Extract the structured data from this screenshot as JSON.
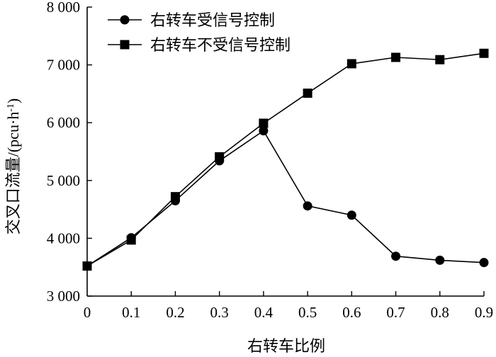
{
  "chart_data": {
    "type": "line",
    "x": [
      0,
      0.1,
      0.2,
      0.3,
      0.4,
      0.5,
      0.6,
      0.7,
      0.8,
      0.9
    ],
    "x_tick_labels": [
      "0",
      "0.1",
      "0.2",
      "0.3",
      "0.4",
      "0.5",
      "0.6",
      "0.7",
      "0.8",
      "0.9"
    ],
    "y_ticks": [
      3000,
      4000,
      5000,
      6000,
      7000,
      8000
    ],
    "y_tick_labels": [
      "3 000",
      "4 000",
      "5 000",
      "6 000",
      "7 000",
      "8 000"
    ],
    "xlim": [
      0,
      0.9
    ],
    "ylim": [
      3000,
      8000
    ],
    "xlabel": "右转车比例",
    "ylabel_main": "交叉口流量/(pcu·h",
    "ylabel_sup": "-1",
    "ylabel_tail": ")",
    "grid": false,
    "legend_position": "top-left",
    "series": [
      {
        "name": "右转车受信号控制",
        "marker": "circle",
        "color": "#000000",
        "values": [
          3520,
          4010,
          4650,
          5340,
          5860,
          4560,
          4400,
          3690,
          3620,
          3580
        ]
      },
      {
        "name": "右转车不受信号控制",
        "marker": "square",
        "color": "#000000",
        "values": [
          3520,
          3970,
          4720,
          5410,
          5990,
          6510,
          7020,
          7130,
          7090,
          7200
        ]
      }
    ]
  }
}
